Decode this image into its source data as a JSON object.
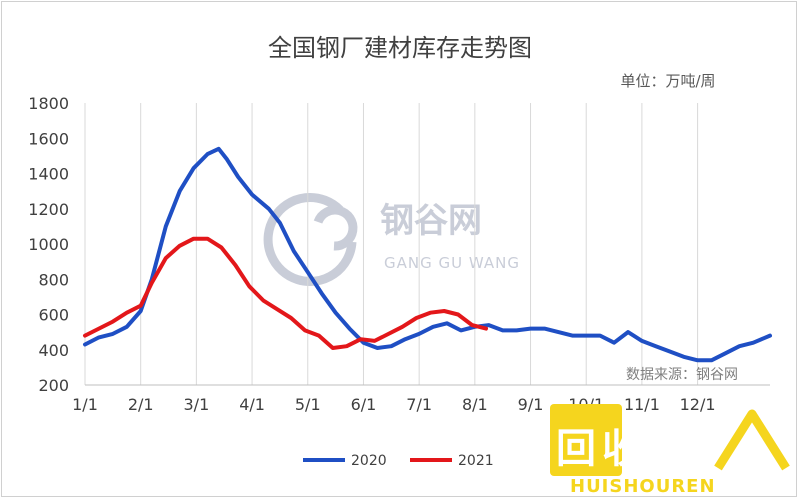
{
  "chart_data": {
    "type": "line",
    "title": "全国钢厂建材库存走势图",
    "unit_label": "单位：万吨/周",
    "source": "数据来源：钢谷网",
    "watermark": {
      "cn": "钢谷网",
      "en": "GANG GU WANG"
    },
    "xlabel": "",
    "ylabel": "",
    "ylim": [
      200,
      1800
    ],
    "yticks": [
      "1800",
      "1600",
      "1400",
      "1200",
      "1000",
      "800",
      "600",
      "400",
      "200"
    ],
    "xticks": [
      "1/1",
      "2/1",
      "3/1",
      "4/1",
      "5/1",
      "6/1",
      "7/1",
      "8/1",
      "9/1",
      "10/1",
      "11/1",
      "12/1"
    ],
    "x_range": [
      0,
      12.3
    ],
    "grid": "vertical",
    "legend_position": "bottom",
    "series": [
      {
        "name": "2020",
        "color": "#1f4fc4",
        "x": [
          0.0,
          0.25,
          0.5,
          0.75,
          1.0,
          1.2,
          1.45,
          1.7,
          1.95,
          2.2,
          2.4,
          2.55,
          2.75,
          3.0,
          3.3,
          3.5,
          3.75,
          4.0,
          4.25,
          4.5,
          4.75,
          5.0,
          5.25,
          5.5,
          5.75,
          6.0,
          6.25,
          6.5,
          6.75,
          7.0,
          7.25,
          7.5,
          7.75,
          8.0,
          8.25,
          8.5,
          8.75,
          9.0,
          9.25,
          9.5,
          9.75,
          10.0,
          10.25,
          10.5,
          10.75,
          11.0,
          11.25,
          11.5,
          11.75,
          12.0,
          12.3
        ],
        "values": [
          430,
          470,
          490,
          530,
          620,
          800,
          1100,
          1300,
          1430,
          1510,
          1540,
          1480,
          1380,
          1280,
          1200,
          1120,
          960,
          840,
          720,
          610,
          520,
          440,
          410,
          420,
          460,
          490,
          530,
          550,
          510,
          530,
          540,
          510,
          510,
          520,
          520,
          500,
          480,
          480,
          480,
          440,
          500,
          450,
          420,
          390,
          360,
          340,
          340,
          380,
          420,
          440,
          480
        ]
      },
      {
        "name": "2021",
        "color": "#e3171a",
        "x": [
          0.0,
          0.25,
          0.5,
          0.75,
          1.0,
          1.2,
          1.45,
          1.7,
          1.95,
          2.2,
          2.45,
          2.7,
          2.95,
          3.2,
          3.45,
          3.7,
          3.95,
          4.2,
          4.45,
          4.7,
          4.95,
          5.2,
          5.45,
          5.7,
          5.95,
          6.2,
          6.45,
          6.7,
          6.95,
          7.2
        ],
        "values": [
          480,
          520,
          560,
          610,
          650,
          780,
          920,
          990,
          1030,
          1030,
          980,
          880,
          760,
          680,
          630,
          580,
          510,
          480,
          410,
          420,
          460,
          450,
          490,
          530,
          580,
          610,
          620,
          600,
          540,
          520
        ]
      }
    ]
  },
  "logo": {
    "cn": "回收",
    "en": "HUISHOUREN"
  }
}
